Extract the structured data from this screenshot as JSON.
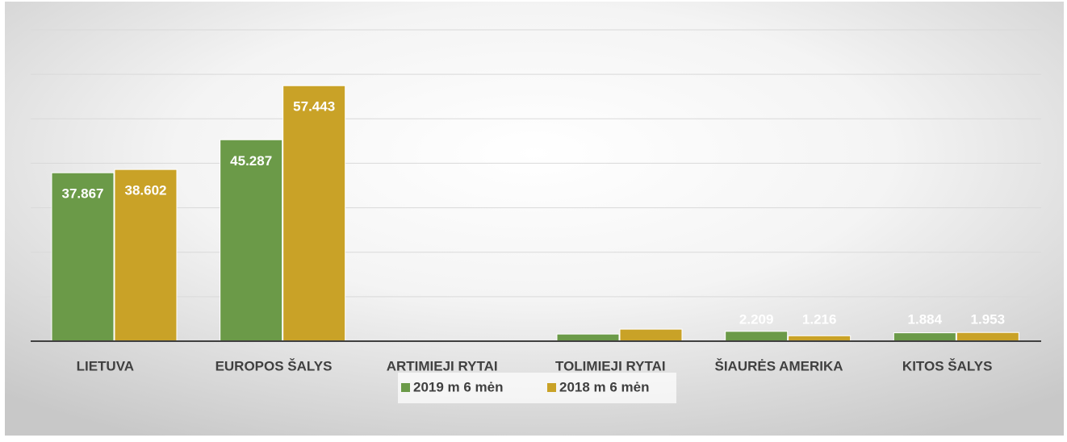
{
  "chart_data": {
    "type": "bar",
    "categories": [
      "LIETUVA",
      "EUROPOS ŠALYS",
      "ARTIMIEJI RYTAI",
      "TOLIMIEJI RYTAI",
      "ŠIAURĖS AMERIKA",
      "KITOS ŠALYS"
    ],
    "series": [
      {
        "name": "2019 m 6 mėn",
        "color": "#6b9a48",
        "values": [
          37.867,
          45.287,
          0.1,
          1.6,
          2.209,
          1.884
        ],
        "value_labels": [
          "37.867",
          "45.287",
          null,
          null,
          "2.209",
          "1.884"
        ]
      },
      {
        "name": "2018 m 6 mėn",
        "color": "#c9a227",
        "values": [
          38.602,
          57.443,
          0.1,
          2.7,
          1.216,
          1.953
        ],
        "value_labels": [
          "38.602",
          "57.443",
          null,
          null,
          "1.216",
          "1.953"
        ]
      }
    ],
    "ylim": [
      0,
      70
    ],
    "yticks": [
      0,
      10,
      20,
      30,
      40,
      50,
      60,
      70
    ],
    "grid": true,
    "legend": "bottom"
  }
}
